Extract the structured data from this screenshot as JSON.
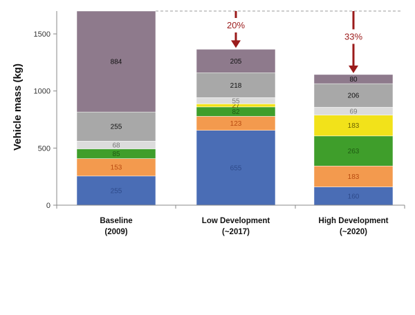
{
  "chart_data": {
    "type": "bar",
    "stacked": true,
    "title": "",
    "xlabel": "",
    "ylabel": "Vehicle mass (kg)",
    "ylim": [
      0,
      1700
    ],
    "yticks": [
      0,
      500,
      1000,
      1500
    ],
    "yticks_text": [
      "0",
      "500",
      "1000",
      "1500"
    ],
    "categories": [
      {
        "line1": "Baseline",
        "line2": "(2009)"
      },
      {
        "line1": "Low Development",
        "line2": "(~2017)"
      },
      {
        "line1": "High Development",
        "line2": "(~2020)"
      }
    ],
    "series": [
      {
        "name": "segment-1",
        "color": "#4a6db5",
        "label_color": "#2e4a8a",
        "values": [
          255,
          655,
          160
        ]
      },
      {
        "name": "segment-2",
        "color": "#f39a4e",
        "label_color": "#b84a10",
        "values": [
          153,
          123,
          183
        ]
      },
      {
        "name": "segment-3",
        "color": "#3f9e2b",
        "label_color": "#1f5a12",
        "values": [
          85,
          82,
          263
        ]
      },
      {
        "name": "segment-4",
        "color": "#f2e21a",
        "label_color": "#6a6200",
        "values": [
          0,
          27,
          183
        ]
      },
      {
        "name": "segment-5",
        "color": "#dcdcdc",
        "label_color": "#777777",
        "values": [
          68,
          55,
          69
        ]
      },
      {
        "name": "segment-6",
        "color": "#a8a8a8",
        "label_color": "#111111",
        "values": [
          255,
          218,
          206
        ]
      },
      {
        "name": "segment-7",
        "color": "#8e7a8c",
        "label_color": "#111111",
        "values": [
          884,
          205,
          80
        ]
      }
    ],
    "reductions": [
      {
        "category_index": 1,
        "label": "20%"
      },
      {
        "category_index": 2,
        "label": "33%"
      }
    ],
    "reference_line_value": 1700,
    "arrow_color": "#9b1b1b"
  }
}
